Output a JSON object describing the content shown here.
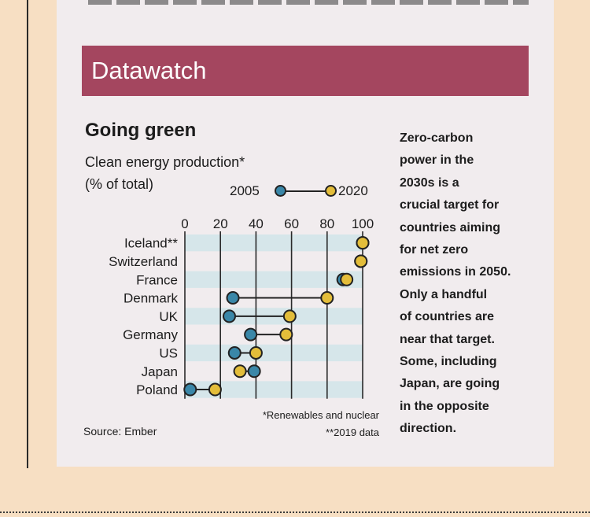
{
  "banner": {
    "title": "Datawatch"
  },
  "chart_data": {
    "type": "dumbbell",
    "title": "Going green",
    "subtitle_line1": "Clean energy production*",
    "subtitle_line2": "(% of total)",
    "legend": {
      "start": "2005",
      "end": "2020"
    },
    "xticks": [
      "0",
      "20",
      "40",
      "60",
      "80",
      "100"
    ],
    "xlim": [
      0,
      100
    ],
    "categories": [
      "Iceland**",
      "Switzerland",
      "France",
      "Denmark",
      "UK",
      "Germany",
      "US",
      "Japan",
      "Poland"
    ],
    "series": [
      {
        "name": "2005",
        "color": "#3a87a8",
        "values": [
          100,
          99,
          89,
          27,
          25,
          37,
          28,
          39,
          3
        ]
      },
      {
        "name": "2020",
        "color": "#e3bd3a",
        "values": [
          100,
          99,
          91,
          80,
          59,
          57,
          40,
          31,
          17
        ]
      }
    ],
    "footnote1": "*Renewables and nuclear",
    "footnote2": "**2019 data",
    "source": "Source: Ember"
  },
  "side_text": "Zero-carbon\npower in the\n2030s is a\ncrucial target for\ncountries aiming\nfor net zero\nemissions in 2050.\nOnly a handful\nof countries are\nnear that target.\nSome, including\nJapan, are going\nin the opposite\ndirection.",
  "colors": {
    "banner": "#a4465f",
    "card": "#f1ecee",
    "page": "#f7dfc3",
    "band": "#d6e6ea"
  }
}
